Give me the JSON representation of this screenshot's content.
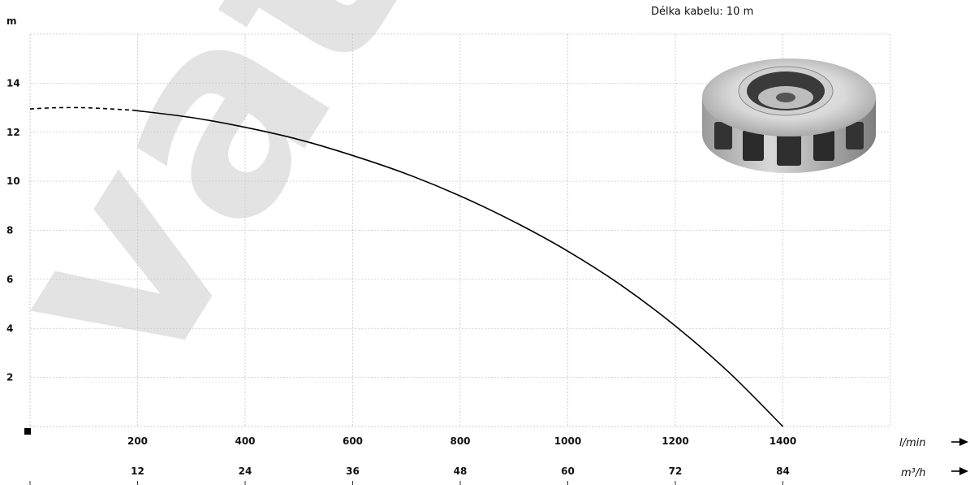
{
  "cable_length_text": "Délka kabelu: 10 m",
  "watermark_text": "vat",
  "chart_data": {
    "type": "line",
    "title": "",
    "ylabel": "m",
    "x_unit_primary": "l/min",
    "x_unit_secondary": "m³/h",
    "xlim": [
      0,
      1600
    ],
    "ylim": [
      0,
      16
    ],
    "grid": true,
    "x_ticks_primary": [
      200,
      400,
      600,
      800,
      1000,
      1200,
      1400
    ],
    "x_ticks_secondary": [
      12,
      24,
      36,
      48,
      60,
      72,
      84
    ],
    "y_ticks": [
      2,
      4,
      6,
      8,
      10,
      12,
      14
    ],
    "series": [
      {
        "style": "dashed",
        "x": [
          0,
          50,
          100,
          150,
          190
        ],
        "y": [
          12.95,
          13.0,
          13.0,
          12.95,
          12.9
        ]
      },
      {
        "style": "solid",
        "x": [
          190,
          300,
          400,
          500,
          600,
          700,
          800,
          900,
          1000,
          1100,
          1200,
          1300,
          1400
        ],
        "y": [
          12.9,
          12.6,
          12.2,
          11.7,
          11.05,
          10.3,
          9.4,
          8.35,
          7.15,
          5.75,
          4.1,
          2.2,
          0
        ]
      }
    ]
  }
}
